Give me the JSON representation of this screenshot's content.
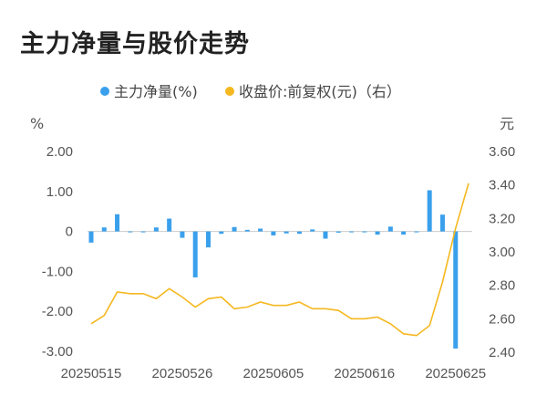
{
  "title": "主力净量与股价走势",
  "chart_data": {
    "type": "bar+line",
    "legend": {
      "placement": "top",
      "items": [
        {
          "label": "主力净量(%)",
          "color": "#3aa0ec"
        },
        {
          "label": "收盘价:前复权(元)（右）",
          "color": "#f5b820"
        }
      ]
    },
    "left_axis": {
      "unit": "%",
      "ticks": [
        "2.00",
        "1.00",
        "0",
        "-1.00",
        "-2.00",
        "-3.00"
      ],
      "range": [
        -3,
        2
      ]
    },
    "right_axis": {
      "unit": "元",
      "ticks": [
        "3.60",
        "3.40",
        "3.20",
        "3.00",
        "2.80",
        "2.60",
        "2.40"
      ],
      "range": [
        2.4,
        3.6
      ]
    },
    "x_labels": [
      "20250515",
      "20250526",
      "20250605",
      "20250616",
      "20250625"
    ],
    "x_label_indices": [
      0,
      7,
      14,
      21,
      28
    ],
    "net_volume": [
      -0.28,
      0.1,
      0.43,
      -0.02,
      -0.02,
      0.1,
      0.32,
      -0.16,
      -1.15,
      -0.4,
      -0.06,
      0.11,
      0.04,
      0.07,
      -0.1,
      -0.05,
      -0.06,
      0.05,
      -0.18,
      -0.03,
      -0.02,
      -0.02,
      -0.08,
      0.12,
      -0.08,
      -0.02,
      1.03,
      0.42,
      -2.93
    ],
    "close_price": [
      2.57,
      2.62,
      2.76,
      2.75,
      2.75,
      2.72,
      2.78,
      2.73,
      2.67,
      2.72,
      2.73,
      2.66,
      2.67,
      2.7,
      2.68,
      2.68,
      2.7,
      2.66,
      2.66,
      2.65,
      2.6,
      2.6,
      2.61,
      2.57,
      2.51,
      2.5,
      2.56,
      2.82,
      3.14,
      3.41
    ]
  }
}
